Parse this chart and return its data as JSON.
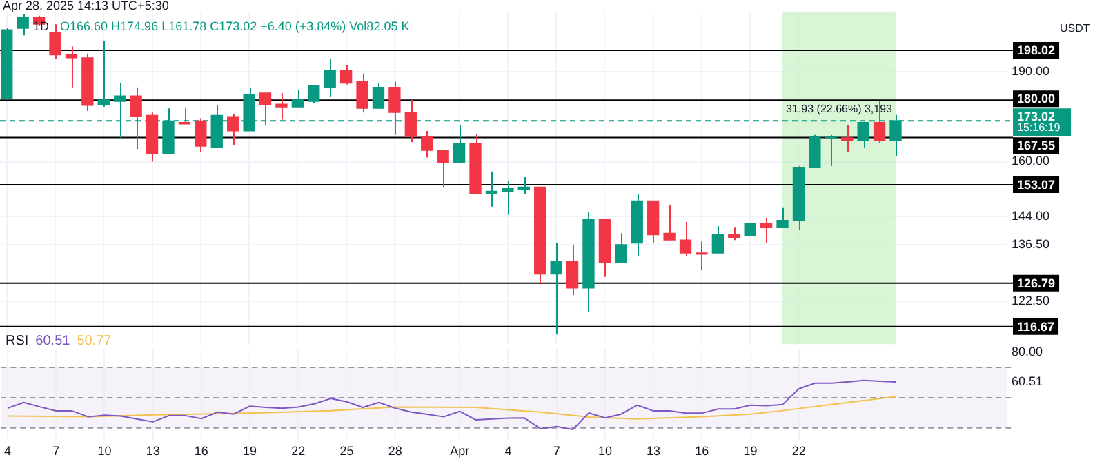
{
  "chart_data": [
    {
      "type": "candlestick",
      "title": "1D",
      "subtitle": "O166.60 H174.96 L161.78 C173.02 +6.40 (+3.84%) Vol82.05 K",
      "ylabel": "USDT",
      "annotations": [
        "Apr 28, 2025 14:13 UTC+5:30",
        "15:16:19"
      ],
      "x": [
        "2025-03-04",
        "2025-03-05",
        "2025-03-06",
        "2025-03-07",
        "2025-03-08",
        "2025-03-09",
        "2025-03-10",
        "2025-03-11",
        "2025-03-12",
        "2025-03-13",
        "2025-03-14",
        "2025-03-15",
        "2025-03-16",
        "2025-03-17",
        "2025-03-18",
        "2025-03-19",
        "2025-03-20",
        "2025-03-21",
        "2025-03-22",
        "2025-03-23",
        "2025-03-24",
        "2025-03-25",
        "2025-03-26",
        "2025-03-27",
        "2025-03-28",
        "2025-03-29",
        "2025-03-30",
        "2025-03-31",
        "2025-04-01",
        "2025-04-02",
        "2025-04-03",
        "2025-04-04",
        "2025-04-05",
        "2025-04-06",
        "2025-04-07",
        "2025-04-08",
        "2025-04-09",
        "2025-04-10",
        "2025-04-11",
        "2025-04-12",
        "2025-04-13",
        "2025-04-14",
        "2025-04-15",
        "2025-04-16",
        "2025-04-17",
        "2025-04-18",
        "2025-04-19",
        "2025-04-20",
        "2025-04-21",
        "2025-04-22",
        "2025-04-23",
        "2025-04-24",
        "2025-04-25",
        "2025-04-26",
        "2025-04-27",
        "2025-04-28"
      ],
      "ohlc": [
        [
          180.6,
          206.6,
          180.1,
          206.0
        ],
        [
          206.6,
          212.2,
          203.8,
          211.0
        ],
        [
          211.0,
          211.6,
          207.7,
          208.2
        ],
        [
          204.9,
          208.2,
          194.7,
          196.3
        ],
        [
          196.3,
          199.5,
          184.5,
          195.2
        ],
        [
          195.2,
          196.8,
          176.3,
          178.2
        ],
        [
          178.6,
          201.6,
          177.7,
          180.1
        ],
        [
          179.6,
          186.0,
          167.0,
          181.5
        ],
        [
          181.5,
          184.5,
          163.9,
          174.4
        ],
        [
          174.8,
          175.8,
          160.0,
          162.6
        ],
        [
          162.6,
          177.2,
          162.6,
          173.0
        ],
        [
          172.5,
          177.2,
          172.0,
          172.0
        ],
        [
          173.0,
          173.9,
          163.0,
          164.8
        ],
        [
          164.4,
          178.2,
          164.4,
          174.8
        ],
        [
          174.4,
          175.3,
          165.2,
          169.7
        ],
        [
          169.7,
          184.5,
          169.7,
          182.0
        ],
        [
          182.5,
          182.5,
          171.6,
          178.6
        ],
        [
          178.6,
          182.5,
          173.4,
          177.7
        ],
        [
          177.7,
          183.5,
          177.7,
          180.1
        ],
        [
          179.6,
          185.0,
          179.1,
          185.0
        ],
        [
          184.5,
          194.7,
          181.1,
          190.5
        ],
        [
          190.5,
          192.6,
          185.5,
          186.0
        ],
        [
          186.5,
          189.5,
          175.8,
          177.2
        ],
        [
          177.2,
          186.0,
          177.2,
          184.5
        ],
        [
          184.5,
          186.5,
          168.4,
          175.8
        ],
        [
          175.8,
          180.1,
          166.1,
          167.9
        ],
        [
          167.9,
          169.7,
          161.3,
          163.5
        ],
        [
          163.5,
          163.5,
          152.4,
          159.6
        ],
        [
          159.6,
          171.6,
          159.6,
          165.7
        ],
        [
          165.7,
          168.8,
          150.4,
          150.4
        ],
        [
          150.4,
          157.0,
          146.8,
          151.2
        ],
        [
          151.2,
          154.1,
          144.5,
          152.0
        ],
        [
          151.6,
          155.3,
          150.4,
          152.4
        ],
        [
          152.4,
          152.4,
          126.6,
          129.0
        ],
        [
          129.0,
          136.9,
          114.9,
          132.2
        ],
        [
          132.2,
          136.5,
          123.9,
          125.6
        ],
        [
          125.6,
          145.2,
          119.9,
          143.3
        ],
        [
          143.3,
          143.3,
          128.3,
          131.8
        ],
        [
          131.8,
          139.5,
          131.8,
          136.5
        ],
        [
          136.9,
          150.4,
          133.6,
          148.4
        ],
        [
          148.4,
          148.4,
          136.9,
          139.1
        ],
        [
          139.5,
          147.2,
          137.7,
          137.7
        ],
        [
          137.7,
          142.6,
          133.6,
          134.3
        ],
        [
          134.3,
          137.3,
          130.1,
          134.0
        ],
        [
          134.3,
          141.4,
          134.3,
          139.1
        ],
        [
          139.1,
          141.0,
          137.7,
          138.4
        ],
        [
          138.8,
          142.2,
          138.8,
          142.2
        ],
        [
          142.2,
          143.7,
          136.9,
          141.0
        ],
        [
          141.0,
          146.4,
          141.0,
          143.0
        ],
        [
          143.0,
          158.7,
          140.3,
          158.3
        ],
        [
          158.3,
          168.4,
          158.3,
          167.9
        ],
        [
          167.5,
          168.4,
          158.7,
          167.9
        ],
        [
          167.5,
          171.6,
          163.0,
          166.6
        ],
        [
          166.6,
          172.5,
          164.4,
          172.5
        ],
        [
          172.5,
          179.6,
          165.7,
          166.6
        ],
        [
          166.6,
          174.96,
          161.78,
          173.02
        ]
      ],
      "colors": [
        "#089981",
        "#089981",
        "#f23645",
        "#f23645",
        "#f23645",
        "#f23645",
        "#089981",
        "#089981",
        "#f23645",
        "#f23645",
        "#089981",
        "#f23645",
        "#f23645",
        "#089981",
        "#f23645",
        "#089981",
        "#f23645",
        "#f23645",
        "#089981",
        "#089981",
        "#089981",
        "#f23645",
        "#f23645",
        "#089981",
        "#f23645",
        "#f23645",
        "#f23645",
        "#f23645",
        "#089981",
        "#f23645",
        "#089981",
        "#089981",
        "#089981",
        "#f23645",
        "#089981",
        "#f23645",
        "#089981",
        "#f23645",
        "#089981",
        "#089981",
        "#f23645",
        "#f23645",
        "#f23645",
        "#f23645",
        "#089981",
        "#f23645",
        "#089981",
        "#f23645",
        "#089981",
        "#089981",
        "#089981",
        "#089981",
        "#f23645",
        "#089981",
        "#f23645",
        "#089981"
      ],
      "log": "y",
      "xlim": [
        "2025-03-03T14:00",
        "2025-05-04T22:00"
      ],
      "ylim": [
        112.8,
        213.3
      ],
      "xticks": [
        {
          "value": "2025-03-04",
          "label": null
        },
        {
          "value": "2025-03-07",
          "label": null
        },
        {
          "value": "2025-03-10",
          "label": null
        },
        {
          "value": "2025-03-13",
          "label": null
        },
        {
          "value": "2025-03-16",
          "label": null
        },
        {
          "value": "2025-03-19",
          "label": null
        },
        {
          "value": "2025-03-22",
          "label": null
        },
        {
          "value": "2025-03-25",
          "label": null
        },
        {
          "value": "2025-03-28",
          "label": null
        },
        {
          "value": "2025-04-01",
          "label": null
        },
        {
          "value": "2025-04-04",
          "label": null
        },
        {
          "value": "2025-04-07",
          "label": null
        },
        {
          "value": "2025-04-10",
          "label": null
        },
        {
          "value": "2025-04-13",
          "label": null
        },
        {
          "value": "2025-04-16",
          "label": null
        },
        {
          "value": "2025-04-19",
          "label": null
        },
        {
          "value": "2025-04-22",
          "label": null
        }
      ],
      "yticks": [
        {
          "value": 190,
          "label": "190.00"
        },
        {
          "value": 160,
          "label": "160.00"
        },
        {
          "value": 144,
          "label": "144.00"
        },
        {
          "value": 136.5,
          "label": "136.50"
        },
        {
          "value": 122.5,
          "label": "122.50"
        }
      ],
      "tick_labels": "y",
      "grid": true,
      "legend": false,
      "ref_lines": [
        {
          "axis": "y",
          "value": 198.02,
          "label": "198.02",
          "color": "#000000"
        },
        {
          "axis": "y",
          "value": 180.0,
          "label": "180.00",
          "color": "#000000"
        },
        {
          "axis": "y",
          "value": 173.02,
          "label": "173.02",
          "color": "#089981",
          "line_style": "dashed"
        },
        {
          "axis": "y",
          "value": 167.55,
          "label": "167.55",
          "color": "#000000"
        },
        {
          "axis": "y",
          "value": 153.07,
          "label": "153.07",
          "color": "#000000"
        },
        {
          "axis": "y",
          "value": 126.79,
          "label": "126.79",
          "color": "#000000"
        },
        {
          "axis": "y",
          "value": 116.67,
          "label": "116.67",
          "color": "#000000"
        }
      ],
      "bands": [
        {
          "axis": "x",
          "from": "2025-04-21",
          "to": "2025-04-28",
          "label": "31.93 (22.66%) 3,193",
          "color": "#b9ecb4"
        }
      ]
    },
    {
      "type": "line",
      "title": "RSI",
      "x": [
        "2025-03-04",
        "2025-03-05",
        "2025-03-06",
        "2025-03-07",
        "2025-03-08",
        "2025-03-09",
        "2025-03-10",
        "2025-03-11",
        "2025-03-12",
        "2025-03-13",
        "2025-03-14",
        "2025-03-15",
        "2025-03-16",
        "2025-03-17",
        "2025-03-18",
        "2025-03-19",
        "2025-03-20",
        "2025-03-21",
        "2025-03-22",
        "2025-03-23",
        "2025-03-24",
        "2025-03-25",
        "2025-03-26",
        "2025-03-27",
        "2025-03-28",
        "2025-03-29",
        "2025-03-30",
        "2025-03-31",
        "2025-04-01",
        "2025-04-02",
        "2025-04-03",
        "2025-04-04",
        "2025-04-05",
        "2025-04-06",
        "2025-04-07",
        "2025-04-08",
        "2025-04-09",
        "2025-04-10",
        "2025-04-11",
        "2025-04-12",
        "2025-04-13",
        "2025-04-14",
        "2025-04-15",
        "2025-04-16",
        "2025-04-17",
        "2025-04-18",
        "2025-04-19",
        "2025-04-20",
        "2025-04-21",
        "2025-04-22",
        "2025-04-23",
        "2025-04-24",
        "2025-04-25",
        "2025-04-26",
        "2025-04-27",
        "2025-04-28"
      ],
      "series": [
        {
          "name": "60.51",
          "color": "#7e57c2",
          "values": [
            43.1,
            46.9,
            44.0,
            41.3,
            41.3,
            37.4,
            38.5,
            37.9,
            36.0,
            34.1,
            38.2,
            38.2,
            36.2,
            40.5,
            39.2,
            44.4,
            43.6,
            43.0,
            43.8,
            46.0,
            49.5,
            47.4,
            43.6,
            46.9,
            43.1,
            40.5,
            39.0,
            37.4,
            41.0,
            35.4,
            36.0,
            36.5,
            36.7,
            29.5,
            31.0,
            29.0,
            40.0,
            36.7,
            39.2,
            45.1,
            41.3,
            41.3,
            39.8,
            39.8,
            42.6,
            42.6,
            45.1,
            44.8,
            45.6,
            55.9,
            59.7,
            59.7,
            60.5,
            61.5,
            null,
            60.51
          ]
        },
        {
          "name": "50.77",
          "color": "#f2c14e",
          "x": [
            "2025-03-04",
            "2025-03-09",
            "2025-03-13",
            "2025-03-19",
            "2025-03-24",
            "2025-03-28",
            "2025-04-02",
            "2025-04-06",
            "2025-04-09",
            "2025-04-12",
            "2025-04-16",
            "2025-04-19",
            "2025-04-21",
            "2025-04-24",
            "2025-04-28"
          ],
          "values": [
            37.9,
            37.4,
            38.7,
            39.8,
            41.5,
            43.8,
            43.6,
            40.5,
            37.2,
            36.0,
            37.4,
            39.2,
            41.5,
            45.6,
            50.77
          ]
        }
      ],
      "xlim": [
        "2025-03-03T14:00",
        "2025-05-04T22:00"
      ],
      "ylim": [
        22,
        82
      ],
      "xticks": [
        {
          "value": "2025-03-04",
          "label": "4"
        },
        {
          "value": "2025-03-07",
          "label": "7"
        },
        {
          "value": "2025-03-10",
          "label": "10"
        },
        {
          "value": "2025-03-13",
          "label": "13"
        },
        {
          "value": "2025-03-16",
          "label": "16"
        },
        {
          "value": "2025-03-19",
          "label": "19"
        },
        {
          "value": "2025-03-22",
          "label": "22"
        },
        {
          "value": "2025-03-25",
          "label": "25"
        },
        {
          "value": "2025-03-28",
          "label": "28"
        },
        {
          "value": "2025-04-01",
          "label": "Apr"
        },
        {
          "value": "2025-04-04",
          "label": "4"
        },
        {
          "value": "2025-04-07",
          "label": "7"
        },
        {
          "value": "2025-04-10",
          "label": "10"
        },
        {
          "value": "2025-04-13",
          "label": "13"
        },
        {
          "value": "2025-04-16",
          "label": "16"
        },
        {
          "value": "2025-04-19",
          "label": "19"
        },
        {
          "value": "2025-04-22",
          "label": "22"
        }
      ],
      "yticks": [
        {
          "value": 80,
          "label": "80.00"
        },
        {
          "value": 60.51,
          "label": "60.51"
        }
      ],
      "grid": "x",
      "legend": "top left",
      "marker": "none",
      "line_style": "solid",
      "ref_lines": [
        {
          "axis": "y",
          "value": 70,
          "color": "#9598a1",
          "line_style": "dashed"
        },
        {
          "axis": "y",
          "value": 50,
          "color": "#9598a1",
          "line_style": "dashed"
        },
        {
          "axis": "y",
          "value": 30,
          "color": "#9598a1",
          "line_style": "dashed"
        }
      ],
      "bands": [
        {
          "axis": "y",
          "from": 30,
          "to": 70,
          "color": "#ede7f6"
        }
      ]
    }
  ]
}
